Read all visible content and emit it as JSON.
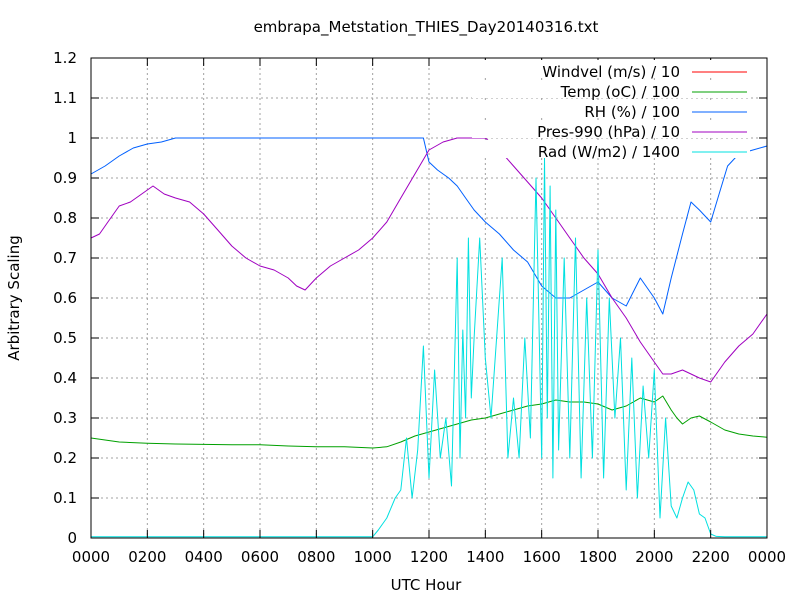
{
  "chart_data": {
    "type": "line",
    "title": "embrapa_Metstation_THIES_Day20140316.txt",
    "xlabel": "UTC Hour",
    "ylabel": "Arbitrary Scaling",
    "xlim": [
      0,
      24
    ],
    "ylim": [
      0,
      1.2
    ],
    "x_ticks": [
      0,
      2,
      4,
      6,
      8,
      10,
      12,
      14,
      16,
      18,
      20,
      22,
      24
    ],
    "x_tick_labels": [
      "0000",
      "0200",
      "0400",
      "0600",
      "0800",
      "1000",
      "1200",
      "1400",
      "1600",
      "1800",
      "2000",
      "2200",
      "0000"
    ],
    "y_ticks": [
      0,
      0.1,
      0.2,
      0.3,
      0.4,
      0.5,
      0.6,
      0.7,
      0.8,
      0.9,
      1,
      1.1,
      1.2
    ],
    "y_tick_labels": [
      "0",
      "0.1",
      "0.2",
      "0.3",
      "0.4",
      "0.5",
      "0.6",
      "0.7",
      "0.8",
      "0.9",
      "1",
      "1.1",
      "1.2"
    ],
    "grid": true,
    "legend_position": "top-right",
    "series": [
      {
        "name": "Windvel (m/s) / 10",
        "color": "#ff0000",
        "x": [],
        "y": []
      },
      {
        "name": "Temp (oC) / 100",
        "color": "#00a000",
        "x": [
          0,
          1,
          2,
          3,
          4,
          5,
          6,
          7,
          8,
          9,
          10,
          10.5,
          11,
          11.5,
          12,
          12.5,
          13,
          13.5,
          14,
          14.5,
          15,
          15.5,
          16,
          16.5,
          17,
          17.5,
          18,
          18.5,
          19,
          19.5,
          20,
          20.3,
          20.6,
          20.8,
          21,
          21.3,
          21.6,
          22,
          22.5,
          23,
          23.5,
          24
        ],
        "y": [
          0.25,
          0.24,
          0.237,
          0.235,
          0.234,
          0.233,
          0.233,
          0.23,
          0.228,
          0.228,
          0.225,
          0.228,
          0.24,
          0.255,
          0.265,
          0.275,
          0.285,
          0.295,
          0.3,
          0.31,
          0.32,
          0.33,
          0.335,
          0.345,
          0.34,
          0.34,
          0.335,
          0.32,
          0.33,
          0.35,
          0.34,
          0.355,
          0.32,
          0.3,
          0.285,
          0.3,
          0.305,
          0.29,
          0.27,
          0.26,
          0.255,
          0.252
        ]
      },
      {
        "name": "RH (%) / 100",
        "color": "#0060ff",
        "x": [
          0,
          0.5,
          1,
          1.5,
          2,
          2.5,
          3,
          4,
          6,
          8,
          10,
          11,
          11.8,
          12,
          12.3,
          12.7,
          13,
          13.3,
          13.6,
          14,
          14.5,
          15,
          15.5,
          16,
          16.5,
          17,
          17.5,
          18,
          18.5,
          19,
          19.5,
          20,
          20.3,
          20.6,
          21,
          21.3,
          21.6,
          22,
          22.3,
          22.6,
          23,
          23.5,
          24
        ],
        "y": [
          0.91,
          0.93,
          0.955,
          0.975,
          0.985,
          0.99,
          1.0,
          1.0,
          1.0,
          1.0,
          1.0,
          1.0,
          1.0,
          0.94,
          0.92,
          0.9,
          0.88,
          0.85,
          0.82,
          0.79,
          0.76,
          0.72,
          0.69,
          0.63,
          0.6,
          0.6,
          0.62,
          0.64,
          0.6,
          0.58,
          0.65,
          0.6,
          0.56,
          0.65,
          0.76,
          0.84,
          0.82,
          0.79,
          0.86,
          0.93,
          0.96,
          0.97,
          0.98
        ]
      },
      {
        "name": "Pres-990 (hPa) / 10",
        "color": "#a000c0",
        "x": [
          0,
          0.3,
          0.6,
          1,
          1.4,
          1.8,
          2.2,
          2.6,
          3,
          3.5,
          4,
          4.5,
          5,
          5.5,
          6,
          6.5,
          7,
          7.3,
          7.6,
          8,
          8.5,
          9,
          9.5,
          10,
          10.5,
          11,
          11.5,
          12,
          12.5,
          13,
          13.5,
          14,
          14.5,
          15,
          15.5,
          16,
          16.5,
          17,
          17.5,
          18,
          18.5,
          19,
          19.5,
          20,
          20.3,
          20.6,
          21,
          21.3,
          21.6,
          22,
          22.5,
          23,
          23.5,
          24
        ],
        "y": [
          0.75,
          0.76,
          0.79,
          0.83,
          0.84,
          0.86,
          0.88,
          0.86,
          0.85,
          0.84,
          0.81,
          0.77,
          0.73,
          0.7,
          0.68,
          0.67,
          0.65,
          0.63,
          0.62,
          0.65,
          0.68,
          0.7,
          0.72,
          0.75,
          0.79,
          0.85,
          0.91,
          0.97,
          0.99,
          1.0,
          1.0,
          1.0,
          0.97,
          0.93,
          0.89,
          0.85,
          0.8,
          0.75,
          0.7,
          0.66,
          0.6,
          0.55,
          0.49,
          0.44,
          0.41,
          0.41,
          0.42,
          0.41,
          0.4,
          0.39,
          0.44,
          0.48,
          0.51,
          0.56
        ]
      },
      {
        "name": "Rad (W/m2) / 1400",
        "color": "#00e0e0",
        "x": [
          0,
          2,
          4,
          6,
          8,
          9,
          10,
          10.2,
          10.5,
          10.8,
          11,
          11.2,
          11.4,
          11.6,
          11.8,
          12,
          12.2,
          12.4,
          12.6,
          12.8,
          13,
          13.1,
          13.2,
          13.3,
          13.4,
          13.5,
          13.6,
          13.8,
          14,
          14.2,
          14.4,
          14.6,
          14.8,
          15,
          15.2,
          15.4,
          15.6,
          15.8,
          16,
          16.1,
          16.2,
          16.3,
          16.4,
          16.5,
          16.6,
          16.8,
          17,
          17.2,
          17.4,
          17.6,
          17.8,
          18,
          18.2,
          18.4,
          18.6,
          18.8,
          19,
          19.2,
          19.4,
          19.6,
          19.8,
          20,
          20.2,
          20.4,
          20.6,
          20.8,
          21,
          21.2,
          21.4,
          21.6,
          21.8,
          22,
          22.2,
          22.5,
          23,
          24
        ],
        "y": [
          0.003,
          0.003,
          0.003,
          0.003,
          0.003,
          0.003,
          0.003,
          0.02,
          0.05,
          0.1,
          0.12,
          0.25,
          0.1,
          0.22,
          0.48,
          0.15,
          0.42,
          0.2,
          0.3,
          0.13,
          0.7,
          0.2,
          0.52,
          0.3,
          0.75,
          0.35,
          0.5,
          0.75,
          0.45,
          0.3,
          0.5,
          0.7,
          0.2,
          0.35,
          0.2,
          0.5,
          0.25,
          0.9,
          0.2,
          0.95,
          0.3,
          0.88,
          0.15,
          0.82,
          0.22,
          0.7,
          0.2,
          0.75,
          0.15,
          0.6,
          0.2,
          0.72,
          0.15,
          0.6,
          0.3,
          0.5,
          0.12,
          0.45,
          0.1,
          0.38,
          0.2,
          0.42,
          0.05,
          0.3,
          0.08,
          0.05,
          0.1,
          0.14,
          0.12,
          0.06,
          0.05,
          0.01,
          0.004,
          0.003,
          0.003,
          0.003
        ]
      }
    ]
  }
}
